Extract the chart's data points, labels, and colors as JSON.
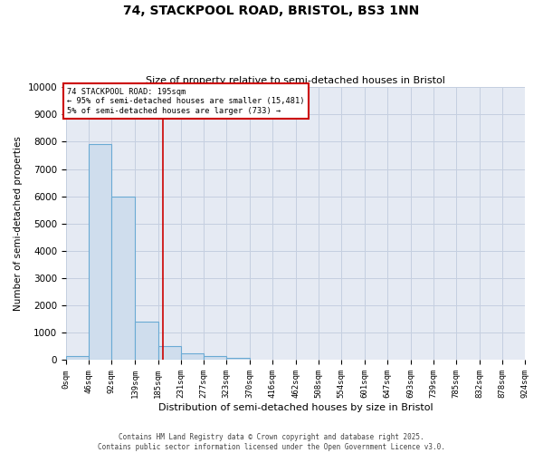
{
  "title_line1": "74, STACKPOOL ROAD, BRISTOL, BS3 1NN",
  "title_line2": "Size of property relative to semi-detached houses in Bristol",
  "xlabel": "Distribution of semi-detached houses by size in Bristol",
  "ylabel": "Number of semi-detached properties",
  "bin_edges": [
    0,
    46,
    92,
    139,
    185,
    231,
    277,
    323,
    370,
    416,
    462,
    508,
    554,
    601,
    647,
    693,
    739,
    785,
    832,
    878,
    924
  ],
  "bin_counts": [
    150,
    7900,
    6000,
    1400,
    500,
    250,
    150,
    75,
    0,
    0,
    0,
    0,
    0,
    0,
    0,
    0,
    0,
    0,
    0,
    0
  ],
  "bar_color": "#cfdded",
  "bar_edge_color": "#6aaad4",
  "property_size": 195,
  "red_line_color": "#cc0000",
  "annotation_text_line1": "74 STACKPOOL ROAD: 195sqm",
  "annotation_text_line2": "← 95% of semi-detached houses are smaller (15,481)",
  "annotation_text_line3": "5% of semi-detached houses are larger (733) →",
  "annotation_box_edgecolor": "#cc0000",
  "ylim": [
    0,
    10000
  ],
  "yticks": [
    0,
    1000,
    2000,
    3000,
    4000,
    5000,
    6000,
    7000,
    8000,
    9000,
    10000
  ],
  "grid_color": "#c5cfe0",
  "background_color": "#e5eaf3",
  "footer_line1": "Contains HM Land Registry data © Crown copyright and database right 2025.",
  "footer_line2": "Contains public sector information licensed under the Open Government Licence v3.0."
}
